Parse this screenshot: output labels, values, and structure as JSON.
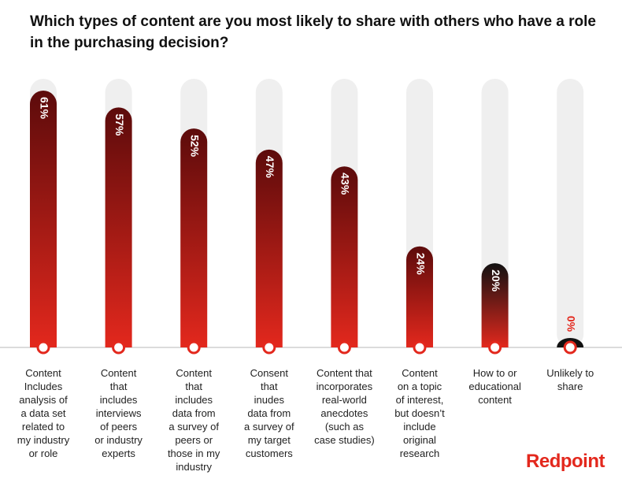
{
  "chart_data": {
    "type": "pill-bar",
    "title": "Which types of content are you most likely to share with others who have a role in the purchasing decision?",
    "categories": [
      "Content\nIncludes\nanalysis of\na data set\nrelated to\nmy industry\nor role",
      "Content\nthat\nincludes\ninterviews\nof peers\nor industry\nexperts",
      "Content\nthat\nincludes\ndata from\na survey of\npeers or\nthose in my\nindustry",
      "Consent\nthat\ninudes\ndata from\na survey of\nmy target\ncustomers",
      "Content that\nincorporates\nreal-world\nanecdotes\n(such as\ncase studies)",
      "Content\non a topic\nof interest,\nbut doesn’t\ninclude\noriginal\nresearch",
      "How to or\neducational\ncontent",
      "Unlikely to\nshare"
    ],
    "values": [
      61,
      57,
      52,
      47,
      43,
      24,
      20,
      0
    ],
    "value_labels": [
      "61%",
      "57%",
      "52%",
      "47%",
      "43%",
      "24%",
      "20%",
      "0%"
    ],
    "colors": [
      "#5c0b0b",
      "#5c0b0b",
      "#5c0b0b",
      "#5c0b0b",
      "#5c0b0b",
      "#5c0b0b",
      "#111111",
      "#111111"
    ],
    "base_color": "#e3281d",
    "brand": "Redpoint"
  }
}
